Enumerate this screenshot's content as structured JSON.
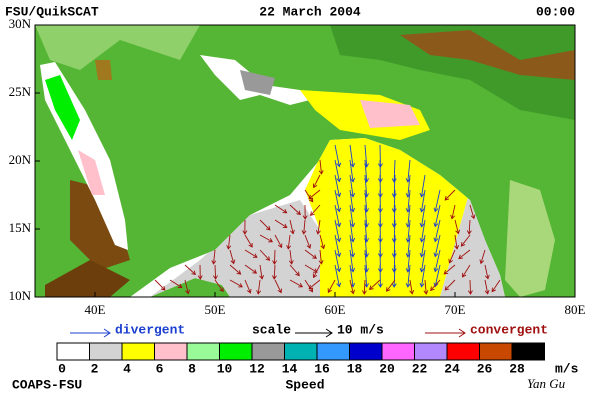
{
  "header": {
    "left": "FSU/QuikSCAT",
    "center": "22 March 2004",
    "right": "00:00"
  },
  "axes": {
    "lat_labels": [
      "30N",
      "25N",
      "20N",
      "15N",
      "10N"
    ],
    "lon_labels": [
      "40E",
      "50E",
      "60E",
      "70E",
      "80E"
    ]
  },
  "legend": {
    "divergent": "divergent",
    "scale": "scale",
    "scale_value": "10 m/s",
    "convergent": "convergent"
  },
  "colorbar": {
    "ticks": [
      0,
      2,
      4,
      6,
      8,
      10,
      12,
      14,
      16,
      18,
      20,
      22,
      24,
      26,
      28
    ],
    "unit": "m/s",
    "title": "Speed",
    "colors": [
      "#ffffff",
      "#d3d3d3",
      "#ffff00",
      "#ffc0cb",
      "#98fb98",
      "#00ee00",
      "#999999",
      "#00b2b2",
      "#3399ff",
      "#0000cd",
      "#ff66ff",
      "#b388ff",
      "#ff0000",
      "#c84800",
      "#000000"
    ]
  },
  "footer": {
    "left": "COAPS-FSU",
    "right": "Yan Gu"
  }
}
